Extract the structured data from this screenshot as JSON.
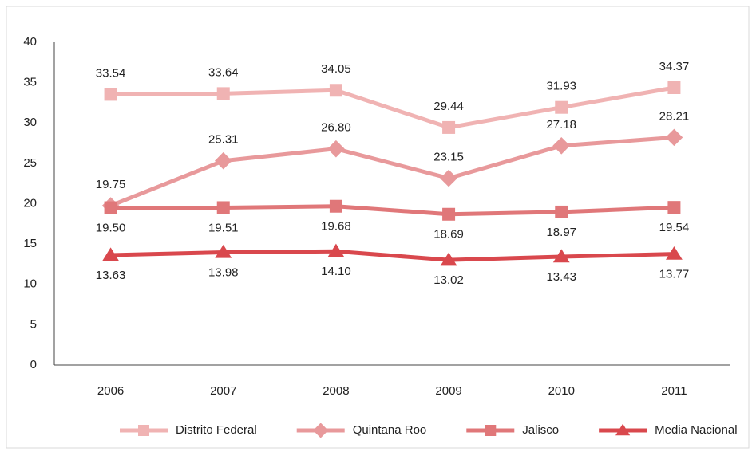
{
  "chart_data": {
    "type": "line",
    "categories": [
      "2006",
      "2007",
      "2008",
      "2009",
      "2010",
      "2011"
    ],
    "ylim": [
      0,
      40
    ],
    "yticks": [
      0,
      5,
      10,
      15,
      20,
      25,
      30,
      35,
      40
    ],
    "grid": false,
    "legend": "bottom",
    "series": [
      {
        "name": "Distrito Federal",
        "color": "#f0b3b3",
        "marker": "square",
        "values": [
          33.54,
          33.64,
          34.05,
          29.44,
          31.93,
          34.37
        ],
        "value_labels": [
          "33.54",
          "33.64",
          "34.05",
          "29.44",
          "31.93",
          "34.37"
        ]
      },
      {
        "name": "Quintana Roo",
        "color": "#e8999b",
        "marker": "diamond",
        "values": [
          19.75,
          25.31,
          26.8,
          23.15,
          27.18,
          28.21
        ],
        "value_labels": [
          "19.75",
          "25.31",
          "26.80",
          "23.15",
          "27.18",
          "28.21"
        ]
      },
      {
        "name": "Jalisco",
        "color": "#e07779",
        "marker": "square",
        "values": [
          19.5,
          19.51,
          19.68,
          18.69,
          18.97,
          19.54
        ],
        "value_labels": [
          "19.50",
          "19.51",
          "19.68",
          "18.69",
          "18.97",
          "19.54"
        ]
      },
      {
        "name": "Media Nacional",
        "color": "#d9484d",
        "marker": "triangle",
        "values": [
          13.63,
          13.98,
          14.1,
          13.02,
          13.43,
          13.77
        ],
        "value_labels": [
          "13.63",
          "13.98",
          "14.10",
          "13.02",
          "13.43",
          "13.77"
        ]
      }
    ]
  }
}
